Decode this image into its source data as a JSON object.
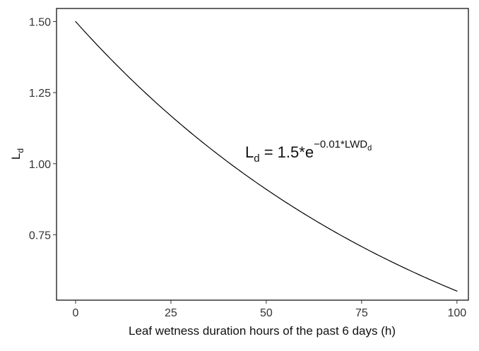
{
  "chart_data": {
    "type": "line",
    "title": "",
    "xlabel": "Leaf wetness duration hours of the past 6 days (h)",
    "ylabel": {
      "main": "L",
      "sub": "d"
    },
    "xlim": [
      -5,
      103
    ],
    "ylim": [
      0.52,
      1.546
    ],
    "x_ticks": [
      0,
      25,
      50,
      75,
      100
    ],
    "x_tick_labels": [
      "0",
      "25",
      "50",
      "75",
      "100"
    ],
    "y_ticks": [
      0.75,
      1.0,
      1.25,
      1.5
    ],
    "y_tick_labels": [
      "0.75",
      "1.00",
      "1.25",
      "1.50"
    ],
    "grid": false,
    "legend": "none",
    "series": [
      {
        "name": "L_d",
        "function": "1.5*exp(-0.01*x)",
        "coefficient": 1.5,
        "rate": -0.01,
        "x": [
          0,
          10,
          20,
          30,
          40,
          50,
          60,
          70,
          80,
          90,
          100
        ],
        "values": [
          1.5,
          1.357,
          1.228,
          1.111,
          1.005,
          0.91,
          0.823,
          0.745,
          0.674,
          0.61,
          0.552
        ],
        "color": "#000000"
      }
    ],
    "annotation": {
      "lhs": "L",
      "lhs_sub": "d",
      "equals": " = ",
      "coef": "1.5*e",
      "exponent": "−0.01*LWD",
      "exponent_sub": "d"
    }
  }
}
